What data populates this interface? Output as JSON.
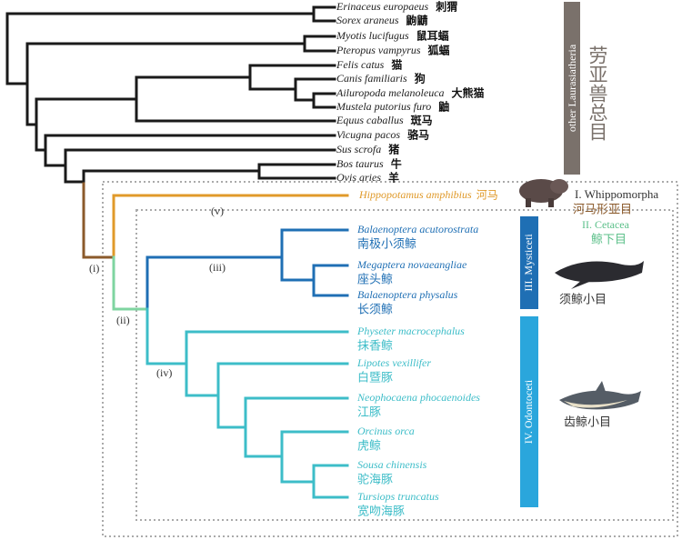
{
  "laurasiatheria": [
    {
      "latin": "Erinaceus europaeus",
      "chinese": "刺猬"
    },
    {
      "latin": "Sorex araneus",
      "chinese": "鼩鼱"
    },
    {
      "latin": "Myotis lucifugus",
      "chinese": "鼠耳蝠"
    },
    {
      "latin": "Pteropus vampyrus",
      "chinese": "狐蝠"
    },
    {
      "latin": "Felis catus",
      "chinese": "猫"
    },
    {
      "latin": "Canis familiaris",
      "chinese": "狗"
    },
    {
      "latin": "Ailuropoda melanoleuca",
      "chinese": "大熊猫"
    },
    {
      "latin": "Mustela putorius furo",
      "chinese": "鼬"
    },
    {
      "latin": "Equus caballus",
      "chinese": "斑马"
    },
    {
      "latin": "Vicugna pacos",
      "chinese": "骆马"
    },
    {
      "latin": "Sus scrofa",
      "chinese": "猪"
    },
    {
      "latin": "Bos taurus",
      "chinese": "牛"
    },
    {
      "latin": "Ovis aries",
      "chinese": "羊"
    }
  ],
  "hippo": {
    "latin": "Hippopotamus amphibius",
    "chinese": "河马"
  },
  "cetaceans": [
    {
      "latin": "Balaenoptera acutorostrata",
      "chinese": "南极小须鲸"
    },
    {
      "latin": "Megaptera novaeangliae",
      "chinese": "座头鲸"
    },
    {
      "latin": "Balaenoptera physalus",
      "chinese": "长须鲸"
    },
    {
      "latin": "Physeter macrocephalus",
      "chinese": "抹香鲸"
    },
    {
      "latin": "Lipotes vexillifer",
      "chinese": "白暨豚"
    },
    {
      "latin": "Neophocaena phocaenoides",
      "chinese": "江豚"
    },
    {
      "latin": "Orcinus orca",
      "chinese": "虎鲸"
    },
    {
      "latin": "Sousa chinensis",
      "chinese": "驼海豚"
    },
    {
      "latin": "Tursiops truncatus",
      "chinese": "宽吻海豚"
    }
  ],
  "nodes": [
    "(i)",
    "(ii)",
    "(iii)",
    "(iv)",
    "(v)"
  ],
  "groups": {
    "other": {
      "label": "other Laurasiatheria",
      "chinese": "劳亚兽总目"
    },
    "whippomorpha": {
      "label": "I. Whippomorpha",
      "chinese": "河马形亚目"
    },
    "cetacea": {
      "label": "II. Cetacea",
      "chinese": "鲸下目"
    },
    "mysticeti": {
      "label": "III. Mysticeti",
      "chinese": "须鲸小目"
    },
    "odontoceti": {
      "label": "IV. Odontoceti",
      "chinese": "齿鲸小目"
    }
  }
}
